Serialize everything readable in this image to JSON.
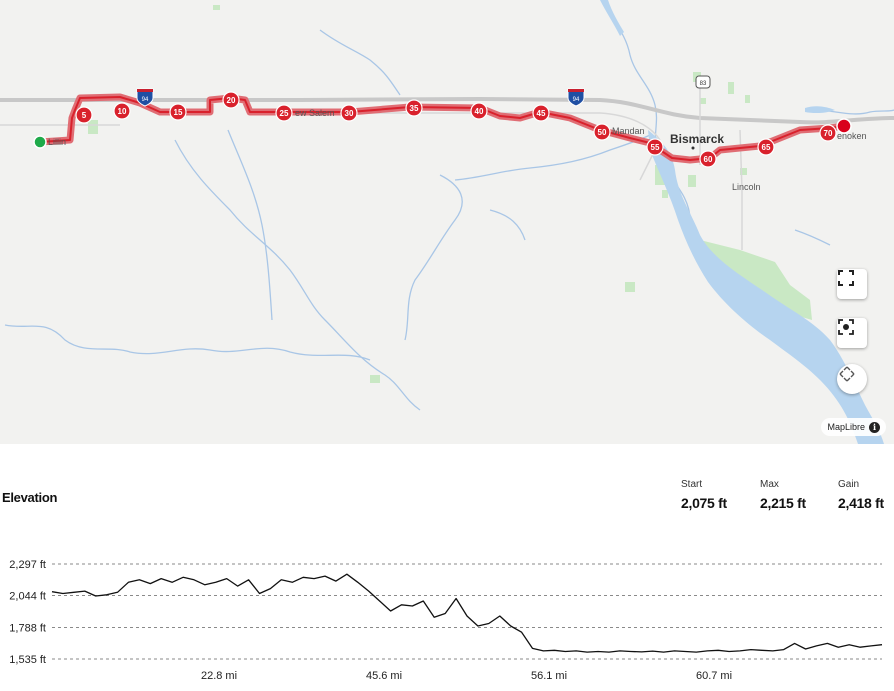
{
  "map": {
    "places": {
      "bismarck": "Bismarck",
      "mandan": "Mandan",
      "lincoln": "Lincoln",
      "new_salem": "ew Salem",
      "menoken": "enoken",
      "start_town": "Lillin"
    },
    "highway_shields": [
      "94",
      "94",
      "83"
    ],
    "route_color": "#d9212c",
    "start_marker_color": "#1faa4a",
    "end_marker_color": "#d9001b",
    "mile_markers": [
      "5",
      "10",
      "15",
      "20",
      "25",
      "30",
      "35",
      "40",
      "45",
      "50",
      "55",
      "60",
      "65",
      "70"
    ],
    "controls": {
      "fullscreen": "fullscreen-icon",
      "locate": "locate-icon",
      "compass": "compass-icon"
    },
    "attribution": "MapLibre"
  },
  "elevation": {
    "title": "Elevation",
    "stats": [
      {
        "label": "Start",
        "value": "2,075 ft"
      },
      {
        "label": "Max",
        "value": "2,215 ft"
      },
      {
        "label": "Gain",
        "value": "2,418 ft"
      }
    ]
  },
  "chart_data": {
    "type": "line",
    "title": "Elevation",
    "xlabel": "",
    "ylabel": "",
    "y_ticks": [
      "2,297 ft",
      "2,044 ft",
      "1,788 ft",
      "1,535 ft"
    ],
    "y_tick_values": [
      2297,
      2044,
      1788,
      1535
    ],
    "x_ticks": [
      "22.8 mi",
      "45.6 mi",
      "56.1 mi",
      "60.7 mi"
    ],
    "ylim": [
      1535,
      2297
    ],
    "grid": true,
    "series": [
      {
        "values": [
          2075,
          2060,
          2070,
          2080,
          2040,
          2050,
          2070,
          2150,
          2170,
          2140,
          2180,
          2150,
          2190,
          2170,
          2130,
          2150,
          2180,
          2120,
          2170,
          2060,
          2100,
          2170,
          2150,
          2190,
          2180,
          2200,
          2160,
          2215,
          2150,
          2080,
          2000,
          1920,
          1970,
          1960,
          2000,
          1870,
          1900,
          2020,
          1880,
          1800,
          1820,
          1880,
          1800,
          1750,
          1620,
          1600,
          1605,
          1595,
          1600,
          1590,
          1595,
          1590,
          1600,
          1595,
          1592,
          1598,
          1590,
          1600,
          1595,
          1590,
          1600,
          1605,
          1595,
          1600,
          1610,
          1605,
          1600,
          1610,
          1660,
          1615,
          1640,
          1660,
          1630,
          1650,
          1630,
          1640,
          1650
        ]
      }
    ],
    "line_color": "#111111"
  }
}
